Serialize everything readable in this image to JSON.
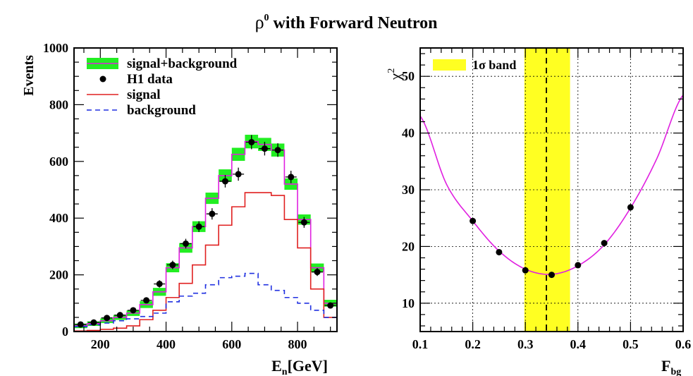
{
  "title": "ρ⁰ with Forward Neutron",
  "title_base": "ρ",
  "title_sup": "0",
  "title_rest": " with Forward Neutron",
  "chart_data": [
    {
      "type": "line",
      "xlabel": "En[GeV]",
      "xlabel_base": "E",
      "xlabel_sub": "n",
      "xlabel_rest": "[GeV]",
      "ylabel": "Events",
      "xlim": [
        120,
        920
      ],
      "ylim": [
        0,
        1000
      ],
      "x_ticks": [
        200,
        400,
        600,
        800
      ],
      "y_ticks": [
        0,
        200,
        400,
        600,
        800,
        1000
      ],
      "grid": false,
      "legend_position": "top-left",
      "bin_edges": [
        120,
        160,
        200,
        240,
        280,
        320,
        360,
        400,
        440,
        480,
        520,
        560,
        600,
        640,
        680,
        720,
        760,
        800,
        840,
        880,
        920
      ],
      "series": [
        {
          "name": "signal+background",
          "style": "histogram-with-band",
          "color": "#e020e0",
          "band_color": "#22ee22",
          "values": [
            20,
            28,
            38,
            50,
            65,
            95,
            140,
            225,
            295,
            370,
            470,
            550,
            625,
            670,
            660,
            640,
            520,
            395,
            225,
            100
          ],
          "band_halfwidth": [
            8,
            8,
            8,
            9,
            10,
            12,
            14,
            16,
            17,
            19,
            20,
            22,
            23,
            24,
            23,
            23,
            20,
            18,
            15,
            12
          ]
        },
        {
          "name": "H1 data",
          "style": "points-with-errors",
          "color": "#000000",
          "x": [
            140,
            180,
            220,
            260,
            300,
            340,
            380,
            420,
            460,
            500,
            540,
            580,
            620,
            660,
            700,
            740,
            780,
            820,
            860,
            900
          ],
          "y": [
            25,
            32,
            48,
            58,
            75,
            110,
            168,
            235,
            310,
            370,
            415,
            530,
            555,
            668,
            645,
            640,
            545,
            385,
            210,
            92
          ],
          "yerr": [
            5,
            6,
            7,
            8,
            9,
            10,
            13,
            15,
            17,
            19,
            20,
            22,
            23,
            25,
            24,
            24,
            22,
            19,
            14,
            10
          ]
        },
        {
          "name": "signal",
          "style": "histogram",
          "color": "#e02020",
          "values": [
            2,
            4,
            8,
            12,
            20,
            42,
            75,
            120,
            170,
            235,
            305,
            375,
            440,
            490,
            490,
            480,
            395,
            295,
            150,
            50
          ]
        },
        {
          "name": "background",
          "style": "histogram-dashed",
          "color": "#2030e0",
          "values": [
            18,
            24,
            30,
            38,
            45,
            53,
            65,
            105,
            125,
            135,
            165,
            190,
            195,
            205,
            165,
            145,
            120,
            100,
            75,
            50
          ]
        }
      ]
    },
    {
      "type": "line",
      "xlabel": "Fbg",
      "xlabel_base": "F",
      "xlabel_sub": "bg",
      "ylabel": "χ2",
      "ylabel_base": "χ",
      "ylabel_sup": "2",
      "xlim": [
        0.1,
        0.6
      ],
      "ylim": [
        5,
        55
      ],
      "x_ticks": [
        "0.1",
        "0.2",
        "0.3",
        "0.4",
        "0.5",
        "0.6"
      ],
      "x_tick_values": [
        0.1,
        0.2,
        0.3,
        0.4,
        0.5,
        0.6
      ],
      "y_ticks": [
        10,
        20,
        30,
        40,
        50
      ],
      "grid": true,
      "legend_position": "top-left",
      "band": {
        "name": "1σ band",
        "x_low": 0.298,
        "x_high": 0.385,
        "color": "#ffff22",
        "best_fit": 0.34
      },
      "series": [
        {
          "name": "fit",
          "style": "curve",
          "color": "#e020e0",
          "x": [
            0.1,
            0.15,
            0.2,
            0.25,
            0.3,
            0.35,
            0.4,
            0.45,
            0.5,
            0.55,
            0.6
          ],
          "y": [
            43,
            31,
            24.5,
            19.2,
            16,
            15.1,
            16.6,
            20.3,
            26.8,
            35.5,
            46.7
          ]
        },
        {
          "name": "points",
          "style": "points",
          "color": "#000000",
          "x": [
            0.2,
            0.25,
            0.3,
            0.35,
            0.4,
            0.45,
            0.5
          ],
          "y": [
            24.5,
            19,
            15.8,
            15,
            16.7,
            20.6,
            26.9
          ]
        }
      ]
    }
  ]
}
